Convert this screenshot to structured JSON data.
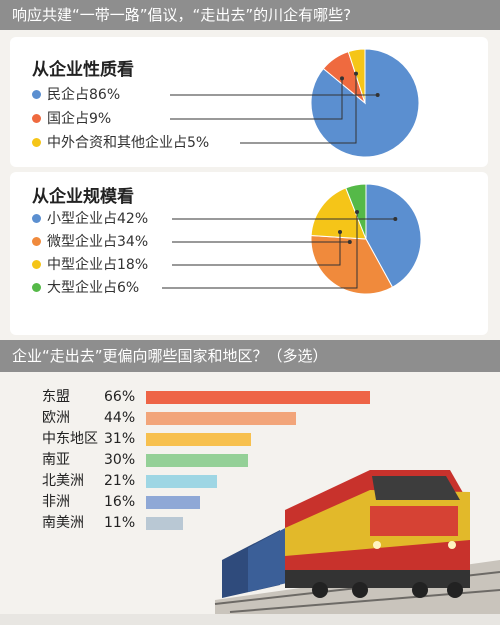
{
  "header1": {
    "title": "响应共建“一带一路”倡议，“走出去”的川企有哪些?"
  },
  "header2": {
    "title": "企业“走出去”更偏向哪些国家和地区？（多选）"
  },
  "chart_data": [
    {
      "type": "pie",
      "title": "从企业性质看",
      "categories": [
        "民企占86%",
        "国企占9%",
        "中外合资和其他企业占5%"
      ],
      "values": [
        86,
        9,
        5
      ],
      "colors": [
        "#5b8fd0",
        "#ef6a3f",
        "#f5c518"
      ]
    },
    {
      "type": "pie",
      "title": "从企业规模看",
      "categories": [
        "小型企业占42%",
        "微型企业占34%",
        "中型企业占18%",
        "大型企业占6%"
      ],
      "values": [
        42,
        34,
        18,
        6
      ],
      "colors": [
        "#5b8fd0",
        "#f08a3c",
        "#f5c518",
        "#55b948"
      ]
    },
    {
      "type": "bar",
      "orientation": "horizontal",
      "categories": [
        "东盟",
        "欧洲",
        "中东地区",
        "南亚",
        "北美洲",
        "非洲",
        "南美洲"
      ],
      "value_labels": [
        "66%",
        "44%",
        "31%",
        "30%",
        "21%",
        "16%",
        "11%"
      ],
      "values": [
        66,
        44,
        31,
        30,
        21,
        16,
        11
      ],
      "colors": [
        "#ee6446",
        "#f2a57a",
        "#f7c04e",
        "#94d097",
        "#9ed6e4",
        "#8fa8d6",
        "#b9c8d4"
      ],
      "xlim": [
        0,
        100
      ]
    }
  ]
}
